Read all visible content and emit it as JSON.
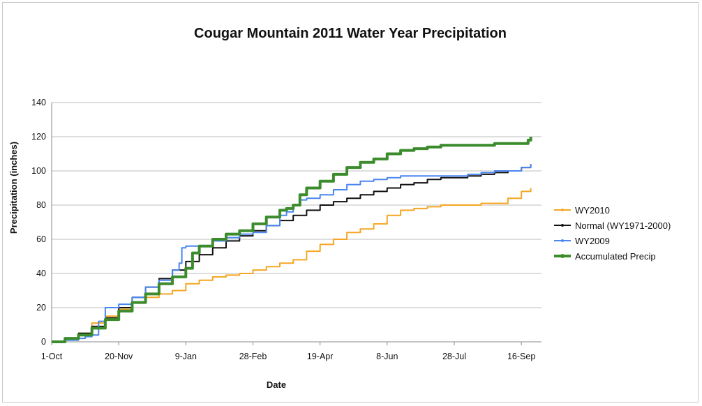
{
  "chart_data": {
    "type": "line",
    "title": "Cougar Mountain 2011 Water Year Precipitation",
    "xlabel": "Date",
    "ylabel": "Precipitation (inches)",
    "ylim": [
      0,
      140
    ],
    "y_ticks": [
      0,
      20,
      40,
      60,
      80,
      100,
      120,
      140
    ],
    "xlim": [
      0,
      365
    ],
    "x_ticks": [
      {
        "day": 0,
        "label": "1-Oct"
      },
      {
        "day": 50,
        "label": "20-Nov"
      },
      {
        "day": 100,
        "label": "9-Jan"
      },
      {
        "day": 150,
        "label": "28-Feb"
      },
      {
        "day": 200,
        "label": "19-Apr"
      },
      {
        "day": 250,
        "label": "8-Jun"
      },
      {
        "day": 300,
        "label": "28-Jul"
      },
      {
        "day": 350,
        "label": "16-Sep"
      }
    ],
    "grid": "horizontal",
    "legend_position": "right",
    "series": [
      {
        "name": "WY2010",
        "color": "#f5a623",
        "x": [
          0,
          10,
          20,
          30,
          40,
          50,
          60,
          70,
          80,
          90,
          100,
          110,
          120,
          130,
          140,
          150,
          160,
          170,
          180,
          190,
          200,
          210,
          220,
          230,
          240,
          250,
          260,
          270,
          280,
          290,
          300,
          310,
          320,
          330,
          340,
          350,
          357
        ],
        "y": [
          0,
          2,
          5,
          11,
          15,
          19,
          23,
          26,
          28,
          30,
          34,
          36,
          38,
          39,
          40,
          42,
          44,
          46,
          48,
          53,
          57,
          60,
          64,
          66,
          69,
          74,
          77,
          78,
          79,
          80,
          80,
          80,
          81,
          81,
          84,
          88,
          90
        ]
      },
      {
        "name": "Normal (WY1971-2000)",
        "color": "#111111",
        "x": [
          0,
          10,
          20,
          30,
          40,
          50,
          60,
          70,
          80,
          90,
          100,
          110,
          120,
          130,
          140,
          150,
          160,
          170,
          180,
          190,
          200,
          210,
          220,
          230,
          240,
          250,
          260,
          270,
          280,
          290,
          300,
          310,
          320,
          330,
          340,
          350,
          357
        ],
        "y": [
          0,
          2,
          5,
          9,
          14,
          20,
          26,
          32,
          37,
          42,
          47,
          51,
          55,
          59,
          62,
          65,
          68,
          71,
          74,
          77,
          80,
          82,
          84,
          86,
          88,
          90,
          92,
          93,
          95,
          96,
          96,
          97,
          98,
          99,
          100,
          102,
          104
        ]
      },
      {
        "name": "WY2009",
        "color": "#4a86f0",
        "x": [
          0,
          10,
          20,
          25,
          30,
          35,
          40,
          50,
          60,
          70,
          80,
          90,
          95,
          97,
          100,
          110,
          120,
          130,
          140,
          150,
          160,
          170,
          175,
          180,
          185,
          190,
          200,
          210,
          220,
          230,
          240,
          250,
          260,
          270,
          280,
          290,
          300,
          310,
          320,
          330,
          340,
          350,
          357
        ],
        "y": [
          0,
          1,
          2,
          3,
          4,
          12,
          20,
          22,
          26,
          32,
          36,
          42,
          46,
          55,
          56,
          56,
          59,
          61,
          63,
          64,
          68,
          74,
          76,
          80,
          83,
          84,
          86,
          89,
          92,
          94,
          95,
          96,
          97,
          97,
          97,
          97,
          97,
          98,
          99,
          100,
          100,
          102,
          104
        ]
      },
      {
        "name": "Accumulated Precip",
        "color": "#3c8c2e",
        "x": [
          0,
          10,
          20,
          30,
          40,
          50,
          60,
          70,
          80,
          90,
          100,
          105,
          110,
          120,
          130,
          140,
          150,
          160,
          170,
          175,
          180,
          185,
          190,
          200,
          210,
          220,
          230,
          240,
          250,
          260,
          270,
          280,
          290,
          300,
          310,
          320,
          330,
          340,
          350,
          355,
          357
        ],
        "y": [
          0,
          2,
          4,
          8,
          13,
          18,
          23,
          28,
          34,
          38,
          43,
          52,
          56,
          60,
          63,
          65,
          69,
          73,
          77,
          78,
          80,
          86,
          90,
          94,
          98,
          102,
          105,
          107,
          110,
          112,
          113,
          114,
          115,
          115,
          115,
          115,
          116,
          116,
          116,
          118,
          120
        ]
      }
    ]
  }
}
